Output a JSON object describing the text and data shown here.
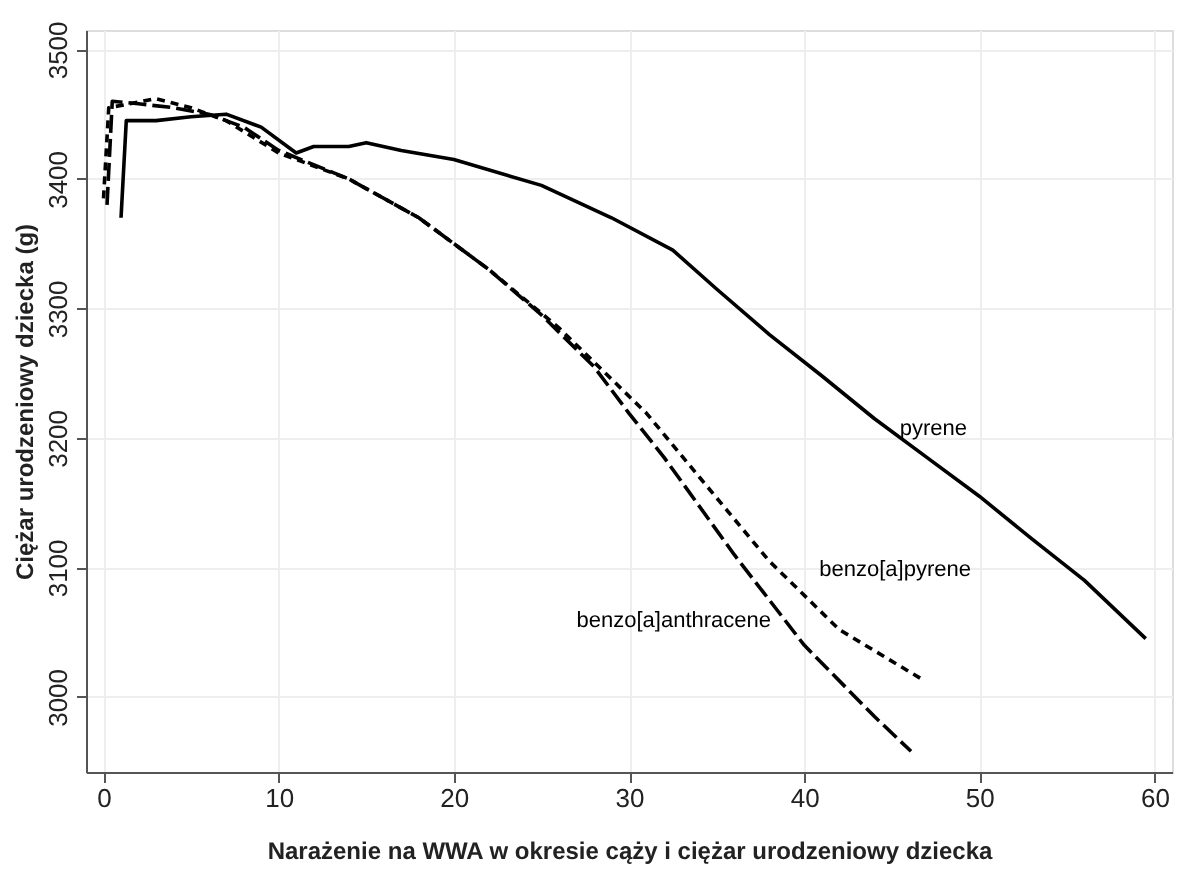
{
  "chart_data": {
    "type": "line",
    "xlabel": "Narażenie na WWA w okresie cąży i ciężar urodzeniowy dziecka",
    "ylabel": "Ciężar urodzeniowy dziecka (g)",
    "xlim": [
      -1,
      61
    ],
    "ylim": [
      2942,
      3515
    ],
    "xticks": [
      0,
      10,
      20,
      30,
      40,
      50,
      60
    ],
    "yticks": [
      3000,
      3100,
      3200,
      3300,
      3400,
      3500
    ],
    "grid": true,
    "series": [
      {
        "name": "pyrene",
        "color": "#000000",
        "line_style": "solid",
        "x": [
          1,
          1.3,
          3,
          5,
          7,
          9,
          11,
          12,
          14,
          15,
          17,
          20,
          25,
          29,
          32.5,
          35,
          38,
          41,
          44,
          47,
          50,
          53,
          56,
          59.5
        ],
        "values": [
          3370,
          3445,
          3445,
          3448,
          3450,
          3440,
          3420,
          3425,
          3425,
          3428,
          3422,
          3415,
          3395,
          3370,
          3345,
          3315,
          3280,
          3248,
          3215,
          3185,
          3155,
          3122,
          3090,
          3045
        ]
      },
      {
        "name": "benzo[a]pyrene",
        "color": "#000000",
        "line_style": "dashed",
        "x": [
          0,
          0.3,
          1.5,
          3,
          5,
          7,
          10,
          14,
          18,
          22,
          26,
          31,
          34,
          38,
          42,
          46.8
        ],
        "values": [
          3385,
          3455,
          3458,
          3462,
          3455,
          3445,
          3420,
          3400,
          3370,
          3330,
          3285,
          3219,
          3170,
          3105,
          3052,
          3013
        ]
      },
      {
        "name": "benzo[a]anthracene",
        "color": "#000000",
        "line_style": "dashed",
        "x": [
          0.2,
          0.5,
          2,
          4,
          6,
          8,
          10,
          14,
          18,
          22,
          25,
          28,
          30,
          32,
          36,
          40,
          44,
          46.1
        ],
        "values": [
          3380,
          3460,
          3458,
          3455,
          3450,
          3440,
          3422,
          3400,
          3370,
          3330,
          3295,
          3255,
          3219,
          3185,
          3110,
          3040,
          2985,
          2958
        ]
      }
    ]
  }
}
